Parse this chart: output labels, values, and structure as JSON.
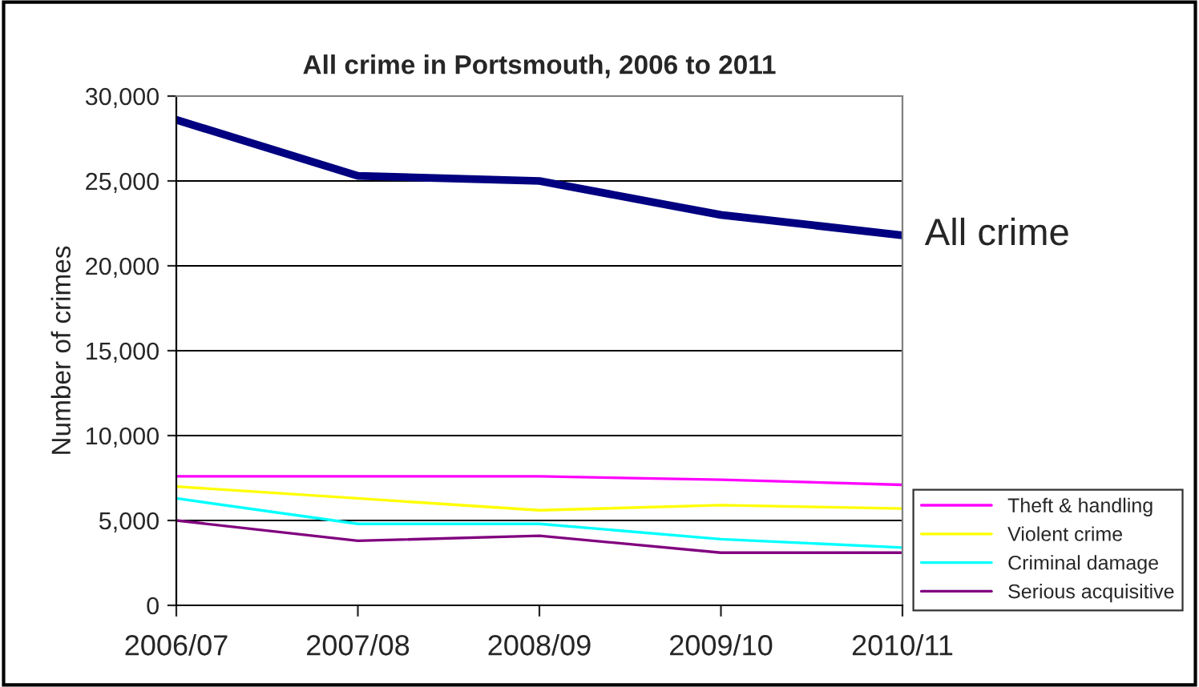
{
  "chart_data": {
    "type": "line",
    "title": "All crime in Portsmouth, 2006 to 2011",
    "ylabel": "Number of crimes",
    "categories": [
      "2006/07",
      "2007/08",
      "2008/09",
      "2009/10",
      "2010/11"
    ],
    "series": [
      {
        "name": "All crime",
        "color": "#000080",
        "values": [
          28600,
          25300,
          25000,
          23000,
          21800
        ]
      },
      {
        "name": "Theft & handling",
        "color": "#ff00ff",
        "values": [
          7600,
          7600,
          7600,
          7400,
          7100
        ]
      },
      {
        "name": "Violent crime",
        "color": "#ffff00",
        "values": [
          7000,
          6300,
          5600,
          5900,
          5700
        ]
      },
      {
        "name": "Criminal damage",
        "color": "#00ffff",
        "values": [
          6300,
          4800,
          4800,
          3900,
          3400
        ]
      },
      {
        "name": "Serious acquisitive",
        "color": "#800080",
        "values": [
          5000,
          3800,
          4100,
          3100,
          3100
        ]
      }
    ],
    "ylim": [
      0,
      30000
    ],
    "yticks": [
      {
        "value": 0,
        "label": "0"
      },
      {
        "value": 5000,
        "label": "5,000"
      },
      {
        "value": 10000,
        "label": "10,000"
      },
      {
        "value": 15000,
        "label": "15,000"
      },
      {
        "value": 20000,
        "label": "20,000"
      },
      {
        "value": 25000,
        "label": "25,000"
      },
      {
        "value": 30000,
        "label": "30,000"
      }
    ],
    "grid": "y",
    "legend": "bottom right",
    "marker": "none",
    "line_style": "solid"
  }
}
